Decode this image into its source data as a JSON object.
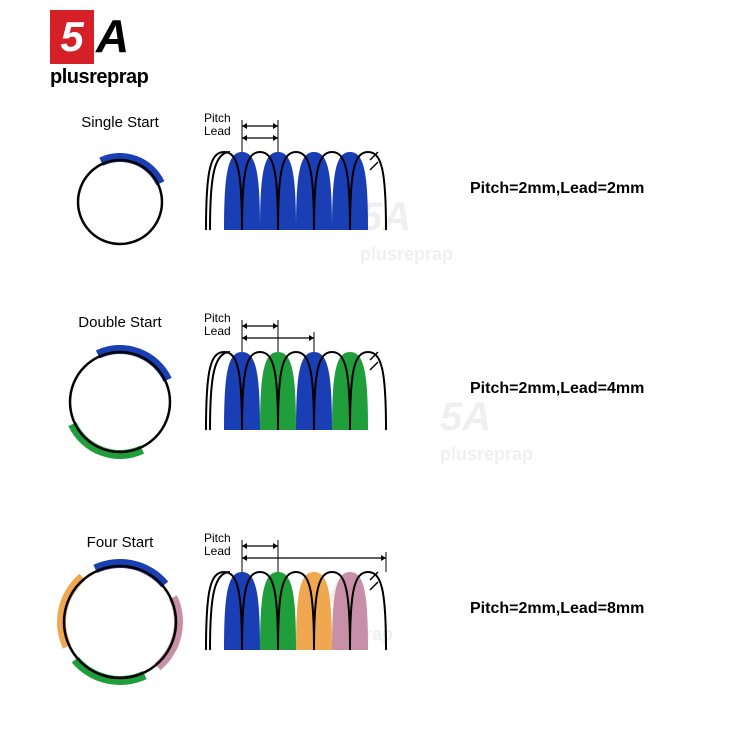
{
  "logo": {
    "digit": "5",
    "letter": "A",
    "brand": "plusreprap",
    "red": "#d62027"
  },
  "colors": {
    "blue": "#1a3fb5",
    "green": "#1f9e3b",
    "orange": "#f0a850",
    "pink": "#c890a8",
    "black": "#000000"
  },
  "rows": [
    {
      "title": "Single Start",
      "pitch_label": "Pitch",
      "lead_label": "Lead",
      "spec": "Pitch=2mm,Lead=2mm",
      "circle_segments": [
        {
          "color": "#1a3fb5",
          "start": -25,
          "end": 65
        }
      ],
      "thread_colors": [
        "#1a3fb5",
        "#1a3fb5",
        "#1a3fb5",
        "#1a3fb5"
      ],
      "pitch_span": 1,
      "lead_span": 1
    },
    {
      "title": "Double Start",
      "pitch_label": "Pitch",
      "lead_label": "Lead",
      "spec": "Pitch=2mm,Lead=4mm",
      "circle_segments": [
        {
          "color": "#1a3fb5",
          "start": -25,
          "end": 65
        },
        {
          "color": "#1f9e3b",
          "start": 155,
          "end": 245
        }
      ],
      "thread_colors": [
        "#1a3fb5",
        "#1f9e3b",
        "#1a3fb5",
        "#1f9e3b"
      ],
      "pitch_span": 1,
      "lead_span": 2
    },
    {
      "title": "Four Start",
      "pitch_label": "Pitch",
      "lead_label": "Lead",
      "spec": "Pitch=2mm,Lead=8mm",
      "circle_segments": [
        {
          "color": "#1a3fb5",
          "start": -25,
          "end": 50
        },
        {
          "color": "#c890a8",
          "start": 65,
          "end": 140
        },
        {
          "color": "#1f9e3b",
          "start": 155,
          "end": 230
        },
        {
          "color": "#f0a850",
          "start": 245,
          "end": 320
        }
      ],
      "thread_colors": [
        "#1a3fb5",
        "#1f9e3b",
        "#f0a850",
        "#c890a8"
      ],
      "pitch_span": 1,
      "lead_span": 4
    }
  ]
}
